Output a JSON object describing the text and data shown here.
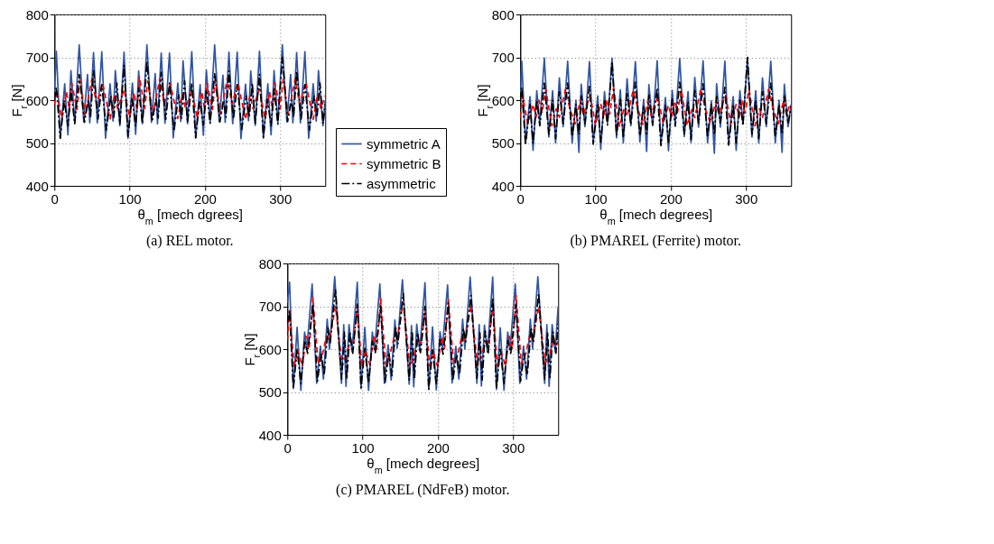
{
  "chart_data": [
    {
      "type": "line",
      "xlabel": "θ$_{m}$ [mech dgrees]",
      "ylabel": "F$_{r}$ [N]",
      "annotations": [
        "(a)  REL motor."
      ],
      "xlim": [
        0,
        360
      ],
      "xticks": [
        0,
        100,
        200,
        300
      ],
      "ylim": [
        400,
        800
      ],
      "yticks": [
        400,
        500,
        600,
        700,
        800
      ],
      "grid": true,
      "legend": "bottom right",
      "series": [
        {
          "name": "symmetric A",
          "color": "#2f55a4",
          "line_style": "solid",
          "x": [
            0,
            2.6,
            7.8,
            13.7,
            18,
            22,
            27,
            33,
            39,
            44,
            47,
            52,
            57,
            63,
            68,
            74,
            78,
            81,
            87,
            92.6,
            97.8,
            103.7,
            108,
            112,
            117,
            123,
            129,
            134,
            137,
            142,
            147,
            153,
            158,
            164,
            168,
            171,
            177,
            182.6,
            187.8,
            193.7,
            198,
            202,
            207,
            213,
            219,
            224,
            227,
            232,
            237,
            243,
            248,
            254,
            258,
            261,
            267,
            272.6,
            277.8,
            283.7,
            288,
            292,
            297,
            303,
            309,
            314,
            317,
            322,
            327,
            333,
            338,
            344,
            348,
            351,
            357,
            360
          ],
          "values": [
            620,
            714,
            511,
            638,
            519,
            669,
            547,
            729,
            549,
            660,
            547,
            711,
            547,
            713,
            511,
            638,
            551,
            669,
            540,
            712,
            511,
            640,
            520,
            668,
            545,
            729,
            548,
            662,
            545,
            710,
            546,
            710,
            512,
            640,
            550,
            692,
            545,
            713,
            512,
            636,
            518,
            670,
            548,
            729,
            550,
            658,
            548,
            712,
            545,
            712,
            510,
            637,
            552,
            668,
            541,
            714,
            511,
            638,
            519,
            669,
            547,
            729,
            549,
            660,
            547,
            711,
            547,
            713,
            511,
            638,
            551,
            669,
            540,
            600
          ]
        },
        {
          "name": "symmetric B",
          "color": "#ff0000",
          "line_style": "dashed",
          "x": [
            0,
            2.6,
            10,
            16,
            20,
            23,
            30,
            34,
            41,
            50,
            56,
            64,
            74,
            80,
            84,
            88,
            92.6,
            100,
            106,
            110,
            113,
            120,
            124,
            131,
            140,
            146,
            154,
            164,
            170,
            174,
            178,
            182.6,
            190,
            196,
            200,
            203,
            210,
            214,
            221,
            230,
            236,
            244,
            254,
            260,
            264,
            268,
            272.6,
            280,
            286,
            290,
            293,
            300,
            304,
            311,
            320,
            326,
            334,
            344,
            350,
            354,
            358,
            360
          ],
          "values": [
            590,
            625,
            558,
            620,
            575,
            640,
            578,
            647,
            566,
            651,
            590,
            640,
            555,
            614,
            580,
            600,
            625,
            560,
            618,
            575,
            655,
            580,
            645,
            565,
            650,
            592,
            638,
            557,
            615,
            582,
            600,
            622,
            558,
            620,
            574,
            640,
            578,
            647,
            568,
            652,
            590,
            640,
            555,
            612,
            580,
            602,
            626,
            556,
            620,
            576,
            641,
            579,
            648,
            566,
            650,
            590,
            642,
            555,
            614,
            580,
            600,
            610
          ]
        },
        {
          "name": "asymmetric",
          "color": "#000000",
          "line_style": "dashdot",
          "x": [
            0,
            2.6,
            7.8,
            13,
            18,
            22,
            27,
            33,
            40,
            45,
            48,
            52,
            58,
            63,
            69,
            75,
            79,
            83,
            87,
            92.6,
            97.8,
            103,
            108,
            112,
            117,
            123,
            130,
            135,
            138,
            142,
            148,
            153,
            159,
            165,
            169,
            173,
            177,
            182.6,
            187.8,
            193,
            198,
            202,
            207,
            213,
            220,
            225,
            228,
            232,
            238,
            243,
            249,
            255,
            259,
            263,
            267,
            272.6,
            277.8,
            283,
            288,
            292,
            297,
            303,
            310,
            315,
            318,
            322,
            328,
            333,
            339,
            345,
            349,
            353,
            357,
            360
          ],
          "values": [
            600,
            630,
            511,
            600,
            540,
            625,
            545,
            660,
            548,
            600,
            560,
            669,
            556,
            636,
            530,
            610,
            560,
            640,
            545,
            681,
            515,
            605,
            540,
            628,
            545,
            690,
            550,
            602,
            558,
            665,
            555,
            640,
            528,
            612,
            558,
            645,
            548,
            640,
            512,
            600,
            542,
            624,
            546,
            662,
            549,
            600,
            560,
            668,
            556,
            636,
            532,
            610,
            561,
            640,
            546,
            660,
            514,
            602,
            540,
            626,
            544,
            700,
            550,
            600,
            560,
            668,
            556,
            636,
            530,
            610,
            560,
            640,
            545,
            590
          ]
        }
      ]
    },
    {
      "type": "line",
      "xlabel": "θ$_{m}$ [mech degrees]",
      "ylabel": "F$_{r}$ [N]",
      "annotations": [
        "(b)  PMAREL (Ferrite) motor."
      ],
      "xlim": [
        0,
        360
      ],
      "xticks": [
        0,
        100,
        200,
        300
      ],
      "ylim": [
        400,
        800
      ],
      "yticks": [
        400,
        500,
        600,
        700,
        800
      ],
      "grid": true,
      "legend": "bottom right",
      "series": [
        {
          "name": "symmetric A",
          "color": "#2f55a4",
          "line_style": "solid",
          "x": [
            0,
            2,
            7,
            13,
            17,
            22,
            26,
            32,
            38,
            43,
            47,
            52,
            57,
            63,
            69,
            74,
            78,
            81,
            86,
            92,
            97,
            103,
            107,
            112,
            116,
            122,
            128,
            133,
            137,
            142,
            147,
            153,
            159,
            164,
            168,
            171,
            176,
            182,
            187,
            193,
            197,
            202,
            206,
            212,
            218,
            223,
            227,
            232,
            237,
            243,
            249,
            254,
            258,
            261,
            266,
            272,
            277,
            283,
            287,
            292,
            296,
            302,
            308,
            313,
            317,
            322,
            327,
            333,
            339,
            344,
            348,
            351,
            356,
            360
          ],
          "values": [
            618,
            691,
            500,
            608,
            483,
            622,
            545,
            698,
            514,
            622,
            500,
            652,
            538,
            691,
            500,
            600,
            478,
            637,
            538,
            690,
            500,
            610,
            485,
            620,
            546,
            698,
            512,
            624,
            500,
            650,
            540,
            690,
            502,
            602,
            480,
            636,
            540,
            692,
            498,
            606,
            482,
            623,
            544,
            697,
            515,
            620,
            501,
            653,
            537,
            692,
            500,
            598,
            476,
            638,
            537,
            691,
            500,
            608,
            483,
            622,
            545,
            698,
            514,
            622,
            500,
            652,
            538,
            691,
            500,
            600,
            478,
            637,
            538,
            590
          ]
        },
        {
          "name": "symmetric B",
          "color": "#ff0000",
          "line_style": "dashed",
          "x": [
            0,
            3,
            10,
            17,
            21,
            25,
            29,
            34,
            42,
            48,
            52,
            60,
            66,
            73,
            80,
            84,
            88,
            93,
            100,
            107,
            111,
            115,
            119,
            124,
            132,
            138,
            142,
            150,
            156,
            163,
            170,
            174,
            178,
            183,
            190,
            197,
            201,
            205,
            209,
            214,
            222,
            228,
            232,
            240,
            246,
            253,
            260,
            264,
            268,
            273,
            280,
            287,
            291,
            295,
            299,
            304,
            312,
            318,
            322,
            330,
            336,
            343,
            350,
            354,
            358,
            360
          ],
          "values": [
            560,
            610,
            545,
            590,
            560,
            600,
            570,
            625,
            540,
            580,
            560,
            625,
            580,
            545,
            600,
            565,
            590,
            612,
            542,
            592,
            558,
            602,
            568,
            628,
            538,
            582,
            562,
            622,
            582,
            543,
            602,
            563,
            588,
            608,
            546,
            588,
            561,
            598,
            571,
            624,
            541,
            578,
            559,
            626,
            579,
            546,
            598,
            566,
            592,
            611,
            544,
            590,
            560,
            600,
            570,
            625,
            540,
            580,
            560,
            625,
            580,
            545,
            600,
            565,
            590,
            580
          ]
        },
        {
          "name": "asymmetric",
          "color": "#000000",
          "line_style": "dashdot",
          "x": [
            0,
            2,
            7,
            13,
            17,
            22,
            26,
            32,
            38,
            43,
            47,
            52,
            57,
            63,
            69,
            74,
            78,
            81,
            86,
            92,
            97,
            103,
            107,
            112,
            116,
            122,
            128,
            133,
            137,
            142,
            147,
            153,
            159,
            164,
            168,
            171,
            176,
            182,
            187,
            193,
            197,
            202,
            206,
            212,
            218,
            223,
            227,
            232,
            237,
            243,
            249,
            254,
            258,
            261,
            266,
            272,
            277,
            283,
            287,
            292,
            296,
            302,
            308,
            313,
            317,
            322,
            327,
            333,
            339,
            344,
            348,
            351,
            356,
            360
          ],
          "values": [
            600,
            630,
            495,
            590,
            500,
            600,
            540,
            640,
            520,
            600,
            510,
            620,
            545,
            640,
            515,
            590,
            520,
            610,
            545,
            632,
            497,
            592,
            502,
            598,
            542,
            690,
            518,
            602,
            512,
            618,
            543,
            642,
            517,
            588,
            522,
            612,
            543,
            628,
            494,
            588,
            499,
            602,
            539,
            642,
            521,
            598,
            508,
            622,
            546,
            638,
            513,
            592,
            519,
            608,
            547,
            630,
            495,
            590,
            500,
            600,
            540,
            700,
            520,
            600,
            510,
            620,
            545,
            640,
            515,
            590,
            520,
            610,
            545,
            585
          ]
        }
      ]
    },
    {
      "type": "line",
      "xlabel": "θ$_{m}$ [mech degrees]",
      "ylabel": "F$_{r}$ [N]",
      "annotations": [
        "(c)  PMAREL (NdFeB) motor."
      ],
      "xlim": [
        0,
        360
      ],
      "xticks": [
        0,
        100,
        200,
        300
      ],
      "ylim": [
        400,
        800
      ],
      "yticks": [
        400,
        500,
        600,
        700,
        800
      ],
      "grid": true,
      "legend": "bottom right",
      "series": [
        {
          "name": "symmetric A",
          "color": "#2f55a4",
          "line_style": "solid",
          "x": [
            0,
            3,
            8,
            13,
            18,
            23,
            26,
            33,
            39,
            44,
            48,
            53,
            56,
            63,
            72,
            75,
            78,
            82,
            86,
            93,
            98,
            103,
            108,
            113,
            116,
            123,
            129,
            134,
            138,
            143,
            146,
            153,
            162,
            165,
            168,
            172,
            176,
            183,
            188,
            193,
            198,
            203,
            206,
            213,
            219,
            224,
            228,
            233,
            236,
            243,
            252,
            255,
            258,
            262,
            266,
            273,
            278,
            283,
            288,
            293,
            296,
            303,
            309,
            314,
            318,
            323,
            326,
            333,
            342,
            345,
            348,
            352,
            356,
            360
          ],
          "values": [
            708,
            756,
            508,
            651,
            504,
            640,
            600,
            752,
            520,
            607,
            530,
            670,
            600,
            769,
            520,
            657,
            513,
            657,
            594,
            756,
            508,
            651,
            504,
            640,
            598,
            752,
            520,
            610,
            528,
            668,
            602,
            762,
            518,
            655,
            512,
            658,
            596,
            755,
            507,
            652,
            505,
            641,
            600,
            750,
            521,
            606,
            530,
            670,
            600,
            768,
            520,
            657,
            514,
            656,
            594,
            768,
            506,
            650,
            504,
            640,
            598,
            752,
            520,
            607,
            530,
            670,
            600,
            769,
            520,
            657,
            513,
            657,
            594,
            700
          ]
        },
        {
          "name": "symmetric B",
          "color": "#ff0000",
          "line_style": "dashed",
          "x": [
            0,
            3,
            9,
            14,
            20,
            25,
            29,
            34,
            41,
            47,
            52,
            56,
            64,
            73,
            79,
            84,
            88,
            93,
            99,
            104,
            110,
            115,
            119,
            124,
            131,
            137,
            142,
            146,
            154,
            163,
            169,
            174,
            178,
            183,
            189,
            194,
            200,
            205,
            209,
            214,
            221,
            227,
            232,
            236,
            244,
            253,
            259,
            264,
            268,
            273,
            279,
            284,
            290,
            295,
            299,
            304,
            311,
            317,
            322,
            326,
            334,
            343,
            349,
            354,
            358,
            360
          ],
          "values": [
            620,
            690,
            560,
            595,
            560,
            630,
            600,
            720,
            565,
            590,
            630,
            620,
            700,
            560,
            590,
            620,
            610,
            700,
            558,
            597,
            562,
            632,
            600,
            718,
            563,
            592,
            628,
            622,
            710,
            558,
            588,
            622,
            612,
            690,
            561,
            593,
            558,
            628,
            602,
            715,
            566,
            590,
            632,
            618,
            702,
            562,
            592,
            618,
            608,
            705,
            560,
            595,
            560,
            630,
            600,
            725,
            565,
            590,
            630,
            620,
            700,
            560,
            590,
            620,
            610,
            620
          ]
        },
        {
          "name": "asymmetric",
          "color": "#000000",
          "line_style": "dashdot",
          "x": [
            0,
            3,
            8,
            13,
            18,
            23,
            27,
            34,
            40,
            45,
            49,
            54,
            57,
            64,
            72,
            76,
            79,
            83,
            87,
            93,
            98,
            103,
            108,
            113,
            117,
            124,
            130,
            135,
            139,
            144,
            147,
            154,
            162,
            166,
            169,
            173,
            177,
            183,
            188,
            193,
            198,
            203,
            207,
            214,
            220,
            225,
            229,
            234,
            237,
            244,
            252,
            256,
            259,
            263,
            267,
            273,
            278,
            283,
            288,
            293,
            297,
            304,
            310,
            315,
            319,
            324,
            327,
            334,
            342,
            346,
            349,
            353,
            357,
            360
          ],
          "values": [
            660,
            690,
            508,
            600,
            520,
            620,
            590,
            705,
            525,
            590,
            540,
            650,
            615,
            740,
            530,
            640,
            530,
            640,
            590,
            705,
            510,
            602,
            522,
            618,
            592,
            700,
            523,
            592,
            538,
            652,
            613,
            730,
            528,
            642,
            532,
            638,
            592,
            700,
            506,
            598,
            518,
            622,
            588,
            708,
            527,
            588,
            542,
            648,
            617,
            725,
            532,
            638,
            528,
            642,
            588,
            720,
            508,
            600,
            520,
            620,
            590,
            705,
            525,
            590,
            540,
            650,
            615,
            730,
            530,
            640,
            530,
            640,
            590,
            660
          ]
        }
      ]
    }
  ]
}
